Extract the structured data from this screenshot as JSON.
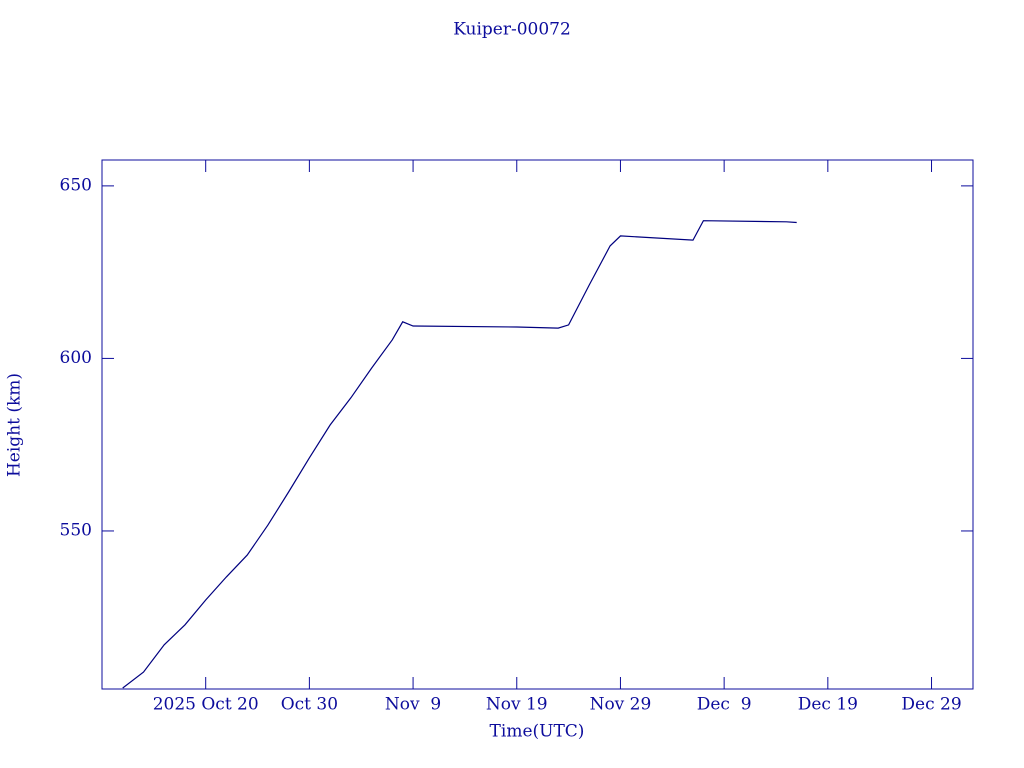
{
  "chart_data": {
    "type": "line",
    "title": "Kuiper-00072",
    "x_label": "Time(UTC)",
    "y_label": "Height (km)",
    "color": "#00007f",
    "x": [
      "2025-10-12",
      "2025-10-14",
      "2025-10-16",
      "2025-10-18",
      "2025-10-20",
      "2025-10-22",
      "2025-10-24",
      "2025-10-26",
      "2025-10-28",
      "2025-10-30",
      "2025-11-01",
      "2025-11-03",
      "2025-11-05",
      "2025-11-07",
      "2025-11-08",
      "2025-11-09",
      "2025-11-19",
      "2025-11-23",
      "2025-11-24",
      "2025-11-26",
      "2025-11-28",
      "2025-11-29",
      "2025-12-06",
      "2025-12-07",
      "2025-12-15",
      "2025-12-16"
    ],
    "series": [
      {
        "name": "Height",
        "color": "#00007f",
        "values": [
          504.5,
          509.1,
          517.0,
          522.8,
          530.0,
          536.7,
          543.0,
          551.7,
          561.3,
          571.2,
          580.7,
          588.6,
          597.2,
          605.4,
          610.6,
          609.4,
          609.1,
          608.8,
          609.7,
          621.3,
          632.6,
          635.5,
          634.3,
          639.9,
          639.6,
          639.4
        ]
      }
    ],
    "xlim": [
      "2025-10-10",
      "2026-01-02"
    ],
    "xticks": [
      {
        "value": "2025-10-20",
        "label": "2025 Oct 20"
      },
      {
        "value": "2025-10-30",
        "label": "Oct 30"
      },
      {
        "value": "2025-11-09",
        "label": "Nov  9"
      },
      {
        "value": "2025-11-19",
        "label": "Nov 19"
      },
      {
        "value": "2025-11-29",
        "label": "Nov 29"
      },
      {
        "value": "2025-12-09",
        "label": "Dec  9"
      },
      {
        "value": "2025-12-19",
        "label": "Dec 19"
      },
      {
        "value": "2025-12-29",
        "label": "Dec 29"
      }
    ],
    "ylim": [
      504.2,
      657.5
    ],
    "yticks": [
      550,
      600,
      650
    ],
    "grid": false
  }
}
